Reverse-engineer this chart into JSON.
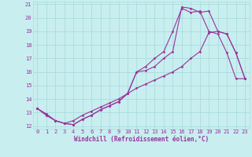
{
  "xlabel": "Windchill (Refroidissement éolien,°C)",
  "bg_color": "#c8eef0",
  "line_color": "#993399",
  "grid_color": "#aadddd",
  "xlim": [
    -0.5,
    23.5
  ],
  "ylim": [
    11.8,
    21.2
  ],
  "xticks": [
    0,
    1,
    2,
    3,
    4,
    5,
    6,
    7,
    8,
    9,
    10,
    11,
    12,
    13,
    14,
    15,
    16,
    17,
    18,
    19,
    20,
    21,
    22,
    23
  ],
  "yticks": [
    12,
    13,
    14,
    15,
    16,
    17,
    18,
    19,
    20,
    21
  ],
  "curve1_x": [
    0,
    1,
    2,
    3,
    4,
    5,
    6,
    7,
    8,
    9,
    10,
    11,
    12,
    13,
    14,
    15,
    16,
    17,
    18,
    19,
    20,
    21,
    22,
    23
  ],
  "curve1_y": [
    13.3,
    12.8,
    12.4,
    12.2,
    12.1,
    12.5,
    12.8,
    13.2,
    13.5,
    13.8,
    14.4,
    16.0,
    16.1,
    16.4,
    17.0,
    17.5,
    20.8,
    20.7,
    20.4,
    20.5,
    19.0,
    18.8,
    17.4,
    15.5
  ],
  "curve2_x": [
    0,
    1,
    2,
    3,
    4,
    5,
    6,
    7,
    8,
    9,
    10,
    11,
    12,
    13,
    14,
    15,
    16,
    17,
    18,
    19,
    20,
    21,
    22,
    23
  ],
  "curve2_y": [
    13.3,
    12.8,
    12.4,
    12.2,
    12.1,
    12.5,
    12.8,
    13.2,
    13.5,
    13.8,
    14.4,
    16.0,
    16.4,
    17.0,
    17.5,
    19.0,
    20.7,
    20.4,
    20.5,
    19.0,
    18.8,
    17.4,
    15.5,
    15.5
  ],
  "curve3_x": [
    0,
    1,
    2,
    3,
    4,
    5,
    6,
    7,
    8,
    9,
    10,
    11,
    12,
    13,
    14,
    15,
    16,
    17,
    18,
    19,
    20,
    21,
    22,
    23
  ],
  "curve3_y": [
    13.3,
    12.9,
    12.4,
    12.2,
    12.4,
    12.8,
    13.1,
    13.4,
    13.7,
    14.0,
    14.4,
    14.8,
    15.1,
    15.4,
    15.7,
    16.0,
    16.4,
    17.0,
    17.5,
    18.9,
    19.0,
    18.8,
    17.4,
    15.5
  ],
  "tick_fontsize": 5,
  "xlabel_fontsize": 5.5,
  "marker_size": 1.5,
  "line_width": 0.8
}
